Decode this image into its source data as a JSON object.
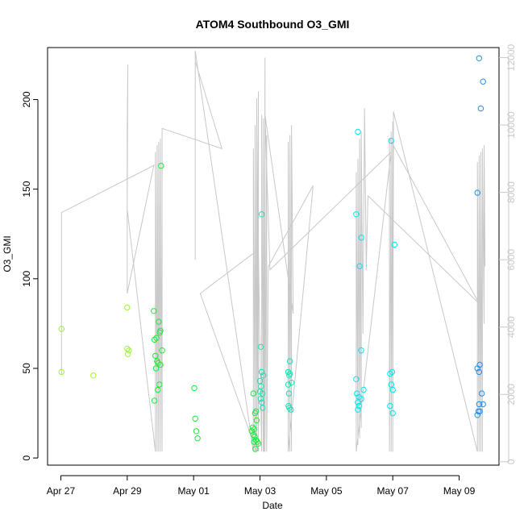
{
  "chart_data": {
    "type": "scatter",
    "title": "ATOM4 Southbound O3_GMI",
    "xlabel": "Date",
    "ylabel": "O3_GMI",
    "x_ticks": [
      "Apr 27",
      "Apr 29",
      "May 01",
      "May 03",
      "May 05",
      "May 07",
      "May 09"
    ],
    "x_tick_values": [
      0,
      2,
      4,
      6,
      8,
      10,
      12
    ],
    "xlim": [
      -0.4,
      13.2
    ],
    "ylim": [
      -4,
      229
    ],
    "y_ticks": [
      0,
      50,
      100,
      150,
      200
    ],
    "y2lim": [
      -100,
      12300
    ],
    "y2_ticks": [
      0,
      2000,
      4000,
      6000,
      8000,
      10000,
      12000
    ],
    "grid": false,
    "legend": "none",
    "colors": {
      "line": "#c8c8c8",
      "ramp": [
        "#9ef23a",
        "#1fe83a",
        "#1fe0b4",
        "#00e6f0",
        "#1f8ff0"
      ]
    },
    "points": [
      {
        "x": 0.02,
        "y": 72,
        "c": 0
      },
      {
        "x": 0.02,
        "y": 48,
        "c": 0
      },
      {
        "x": 0.98,
        "y": 46,
        "c": 0
      },
      {
        "x": 2.0,
        "y": 84,
        "c": 0
      },
      {
        "x": 2.0,
        "y": 61,
        "c": 0
      },
      {
        "x": 2.05,
        "y": 60,
        "c": 0
      },
      {
        "x": 2.02,
        "y": 58,
        "c": 0
      },
      {
        "x": 2.8,
        "y": 82,
        "c": 1
      },
      {
        "x": 2.82,
        "y": 66,
        "c": 1
      },
      {
        "x": 2.88,
        "y": 67,
        "c": 1
      },
      {
        "x": 2.95,
        "y": 76,
        "c": 1
      },
      {
        "x": 2.98,
        "y": 70,
        "c": 1
      },
      {
        "x": 3.0,
        "y": 71,
        "c": 1
      },
      {
        "x": 2.85,
        "y": 57,
        "c": 1
      },
      {
        "x": 2.9,
        "y": 54,
        "c": 1
      },
      {
        "x": 2.93,
        "y": 53,
        "c": 1
      },
      {
        "x": 3.0,
        "y": 52,
        "c": 1
      },
      {
        "x": 3.05,
        "y": 60,
        "c": 1
      },
      {
        "x": 2.87,
        "y": 50,
        "c": 1
      },
      {
        "x": 2.97,
        "y": 41,
        "c": 1
      },
      {
        "x": 2.92,
        "y": 38,
        "c": 1
      },
      {
        "x": 2.82,
        "y": 32,
        "c": 1
      },
      {
        "x": 3.02,
        "y": 163,
        "c": 1
      },
      {
        "x": 4.02,
        "y": 39,
        "c": 1
      },
      {
        "x": 4.05,
        "y": 22,
        "c": 1
      },
      {
        "x": 4.08,
        "y": 15,
        "c": 1
      },
      {
        "x": 4.12,
        "y": 11,
        "c": 1
      },
      {
        "x": 5.8,
        "y": 36,
        "c": 1
      },
      {
        "x": 5.85,
        "y": 25,
        "c": 1
      },
      {
        "x": 5.88,
        "y": 26,
        "c": 1
      },
      {
        "x": 5.9,
        "y": 21,
        "c": 1
      },
      {
        "x": 5.78,
        "y": 17,
        "c": 1
      },
      {
        "x": 5.82,
        "y": 16,
        "c": 1
      },
      {
        "x": 5.75,
        "y": 15,
        "c": 1
      },
      {
        "x": 5.8,
        "y": 13,
        "c": 1
      },
      {
        "x": 5.84,
        "y": 12,
        "c": 1
      },
      {
        "x": 5.88,
        "y": 10,
        "c": 1
      },
      {
        "x": 5.92,
        "y": 9,
        "c": 1
      },
      {
        "x": 5.82,
        "y": 9,
        "c": 1
      },
      {
        "x": 5.95,
        "y": 8,
        "c": 1
      },
      {
        "x": 5.86,
        "y": 5,
        "c": 1
      },
      {
        "x": 6.05,
        "y": 136,
        "c": 2
      },
      {
        "x": 6.02,
        "y": 62,
        "c": 2
      },
      {
        "x": 6.05,
        "y": 48,
        "c": 2
      },
      {
        "x": 6.1,
        "y": 46,
        "c": 2
      },
      {
        "x": 6.0,
        "y": 43,
        "c": 2
      },
      {
        "x": 6.03,
        "y": 40,
        "c": 2
      },
      {
        "x": 6.0,
        "y": 37,
        "c": 2
      },
      {
        "x": 6.07,
        "y": 36,
        "c": 2
      },
      {
        "x": 6.02,
        "y": 33,
        "c": 2
      },
      {
        "x": 6.05,
        "y": 31,
        "c": 2
      },
      {
        "x": 6.08,
        "y": 28,
        "c": 2
      },
      {
        "x": 6.9,
        "y": 54,
        "c": 2
      },
      {
        "x": 6.85,
        "y": 48,
        "c": 2
      },
      {
        "x": 6.9,
        "y": 47,
        "c": 2
      },
      {
        "x": 6.88,
        "y": 46,
        "c": 2
      },
      {
        "x": 6.95,
        "y": 42,
        "c": 2
      },
      {
        "x": 6.85,
        "y": 41,
        "c": 2
      },
      {
        "x": 6.87,
        "y": 36,
        "c": 2
      },
      {
        "x": 6.86,
        "y": 29,
        "c": 2
      },
      {
        "x": 6.88,
        "y": 28,
        "c": 2
      },
      {
        "x": 6.93,
        "y": 27,
        "c": 2
      },
      {
        "x": 8.95,
        "y": 182,
        "c": 3
      },
      {
        "x": 8.9,
        "y": 136,
        "c": 3
      },
      {
        "x": 9.05,
        "y": 123,
        "c": 3
      },
      {
        "x": 9.0,
        "y": 107,
        "c": 3
      },
      {
        "x": 9.05,
        "y": 60,
        "c": 3
      },
      {
        "x": 8.9,
        "y": 44,
        "c": 3
      },
      {
        "x": 9.12,
        "y": 38,
        "c": 3
      },
      {
        "x": 8.92,
        "y": 36,
        "c": 3
      },
      {
        "x": 8.98,
        "y": 34,
        "c": 3
      },
      {
        "x": 9.05,
        "y": 33,
        "c": 3
      },
      {
        "x": 8.95,
        "y": 31,
        "c": 3
      },
      {
        "x": 8.98,
        "y": 29,
        "c": 3
      },
      {
        "x": 8.95,
        "y": 27,
        "c": 3
      },
      {
        "x": 9.95,
        "y": 177,
        "c": 3
      },
      {
        "x": 10.05,
        "y": 119,
        "c": 3
      },
      {
        "x": 9.98,
        "y": 48,
        "c": 3
      },
      {
        "x": 9.92,
        "y": 47,
        "c": 3
      },
      {
        "x": 9.95,
        "y": 41,
        "c": 3
      },
      {
        "x": 10.0,
        "y": 38,
        "c": 3
      },
      {
        "x": 9.92,
        "y": 29,
        "c": 3
      },
      {
        "x": 10.0,
        "y": 25,
        "c": 3
      },
      {
        "x": 12.6,
        "y": 223,
        "c": 4
      },
      {
        "x": 12.72,
        "y": 210,
        "c": 4
      },
      {
        "x": 12.65,
        "y": 195,
        "c": 4
      },
      {
        "x": 12.55,
        "y": 148,
        "c": 4
      },
      {
        "x": 12.62,
        "y": 52,
        "c": 4
      },
      {
        "x": 12.55,
        "y": 50,
        "c": 4
      },
      {
        "x": 12.6,
        "y": 48,
        "c": 4
      },
      {
        "x": 12.68,
        "y": 36,
        "c": 4
      },
      {
        "x": 12.6,
        "y": 30,
        "c": 4
      },
      {
        "x": 12.72,
        "y": 30,
        "c": 4
      },
      {
        "x": 12.58,
        "y": 26,
        "c": 4
      },
      {
        "x": 12.62,
        "y": 26,
        "c": 4
      },
      {
        "x": 12.55,
        "y": 24,
        "c": 4
      }
    ],
    "altitude_line": [
      [
        0.02,
        2600
      ],
      [
        0.02,
        3300
      ],
      [
        0.02,
        7400
      ],
      [
        2.8,
        8800
      ],
      [
        2.0,
        5000
      ],
      [
        2.0,
        9900
      ],
      [
        2.02,
        11800
      ],
      [
        2.0,
        7500
      ],
      [
        2.85,
        300
      ],
      [
        2.85,
        9200
      ],
      [
        2.9,
        300
      ],
      [
        2.9,
        9400
      ],
      [
        2.95,
        300
      ],
      [
        2.95,
        9500
      ],
      [
        3.0,
        300
      ],
      [
        3.0,
        9600
      ],
      [
        3.05,
        300
      ],
      [
        3.05,
        9900
      ],
      [
        4.85,
        9300
      ],
      [
        4.05,
        11900
      ],
      [
        4.05,
        6000
      ],
      [
        4.05,
        12200
      ],
      [
        5.8,
        300
      ],
      [
        5.8,
        9300
      ],
      [
        5.85,
        300
      ],
      [
        5.85,
        10000
      ],
      [
        5.9,
        300
      ],
      [
        5.9,
        10800
      ],
      [
        5.95,
        300
      ],
      [
        5.95,
        11000
      ],
      [
        5.9,
        300
      ],
      [
        4.2,
        5000
      ],
      [
        5.95,
        6300
      ],
      [
        6.05,
        300
      ],
      [
        6.05,
        10300
      ],
      [
        6.1,
        300
      ],
      [
        6.1,
        10200
      ],
      [
        6.12,
        300
      ],
      [
        6.15,
        12000
      ],
      [
        6.15,
        300
      ],
      [
        6.2,
        9700
      ],
      [
        6.2,
        300
      ],
      [
        6.25,
        5800
      ],
      [
        7.6,
        8200
      ],
      [
        6.85,
        300
      ],
      [
        6.85,
        9500
      ],
      [
        6.9,
        300
      ],
      [
        6.9,
        9700
      ],
      [
        6.95,
        300
      ],
      [
        6.95,
        10000
      ],
      [
        7.0,
        4400
      ],
      [
        6.15,
        10300
      ],
      [
        6.3,
        5700
      ],
      [
        9.95,
        9200
      ],
      [
        8.9,
        300
      ],
      [
        8.9,
        8600
      ],
      [
        8.95,
        500
      ],
      [
        8.95,
        9000
      ],
      [
        9.0,
        700
      ],
      [
        9.0,
        9600
      ],
      [
        9.05,
        1000
      ],
      [
        9.05,
        9800
      ],
      [
        9.1,
        3800
      ],
      [
        9.15,
        10500
      ],
      [
        9.2,
        5700
      ],
      [
        9.25,
        7900
      ],
      [
        12.6,
        4700
      ],
      [
        9.9,
        9600
      ],
      [
        9.9,
        300
      ],
      [
        9.95,
        9800
      ],
      [
        9.95,
        300
      ],
      [
        10.0,
        10100
      ],
      [
        10.0,
        300
      ],
      [
        10.02,
        10400
      ],
      [
        12.55,
        300
      ],
      [
        12.55,
        8900
      ],
      [
        12.6,
        300
      ],
      [
        12.6,
        9100
      ],
      [
        12.65,
        300
      ],
      [
        12.65,
        9200
      ],
      [
        12.7,
        300
      ],
      [
        12.7,
        9300
      ],
      [
        12.75,
        4100
      ],
      [
        12.75,
        9400
      ],
      [
        12.78,
        5800
      ]
    ]
  }
}
